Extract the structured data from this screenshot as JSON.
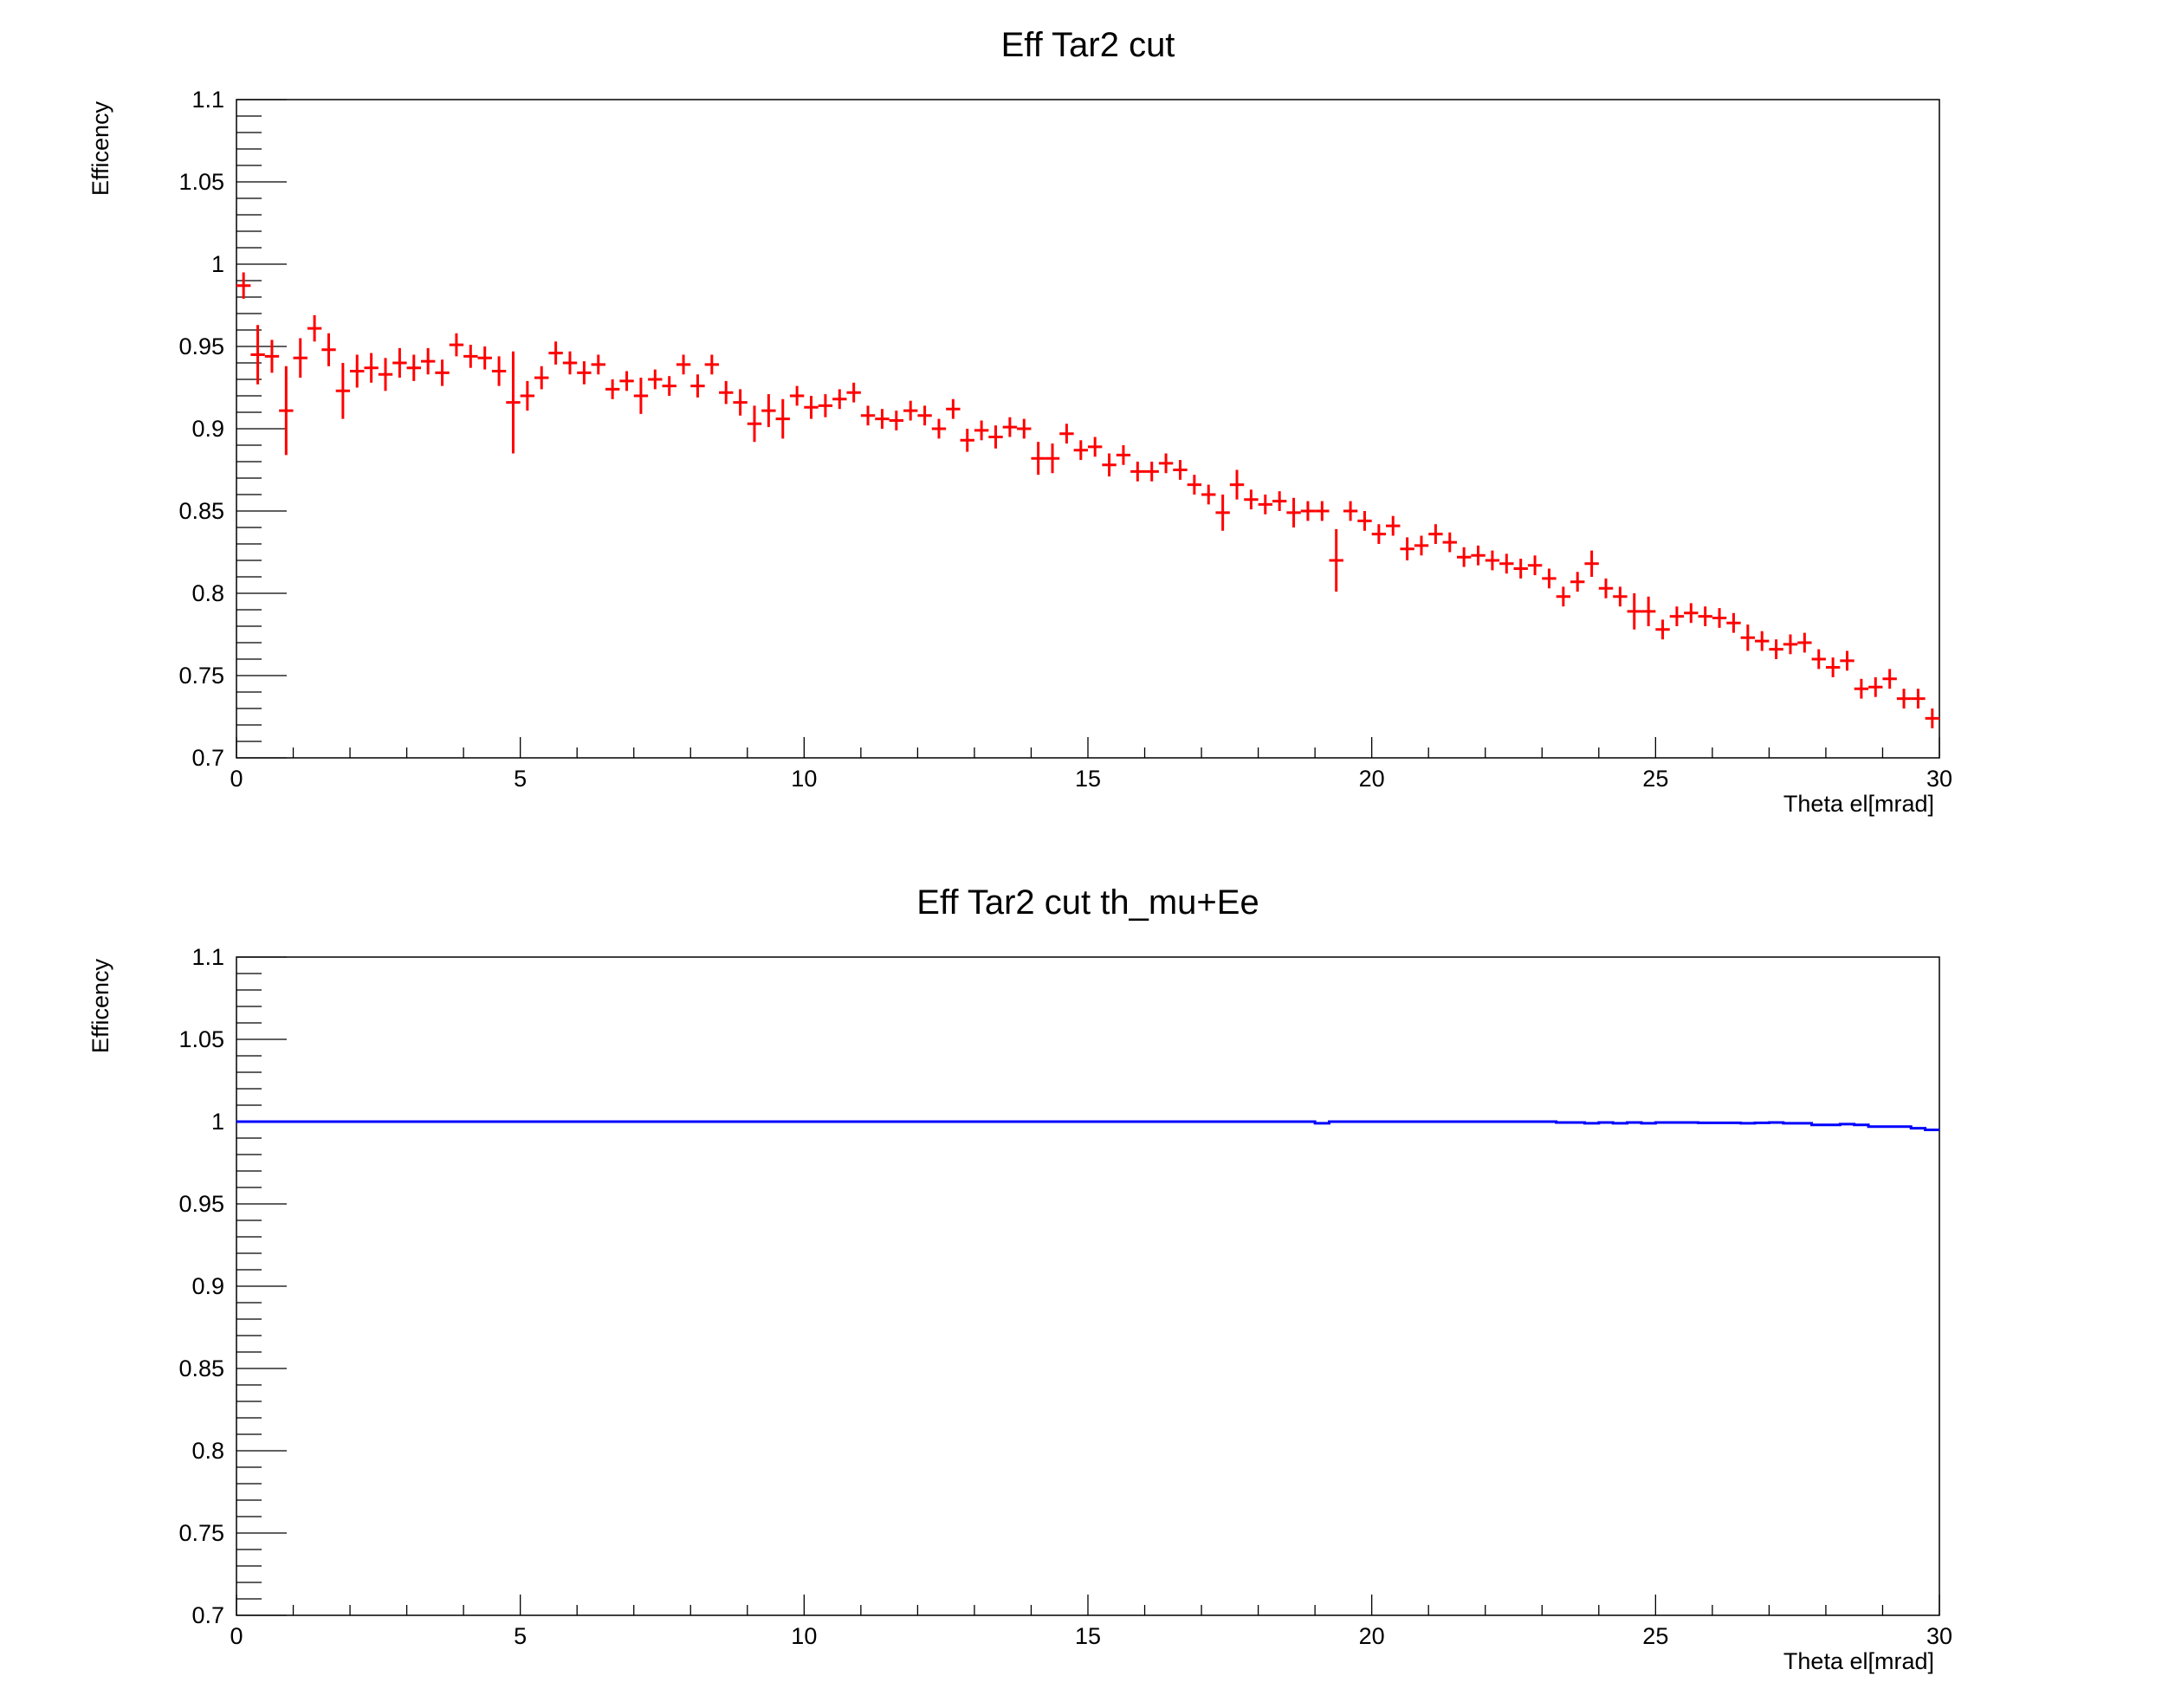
{
  "chart_data": [
    {
      "type": "scatter",
      "title": "Eff Tar2 cut",
      "xlabel": "Theta el[mrad]",
      "ylabel": "Efficency",
      "xlim": [
        0,
        30
      ],
      "ylim": [
        0.7,
        1.1
      ],
      "x_ticks": [
        "0",
        "5",
        "10",
        "15",
        "20",
        "25",
        "30"
      ],
      "y_ticks": [
        "0.7",
        "0.75",
        "0.8",
        "0.85",
        "0.9",
        "0.95",
        "1",
        "1.05",
        "1.1"
      ],
      "bin_width": 0.25,
      "color": "#ff0000",
      "style": "points-with-error-bars",
      "series": [
        {
          "x": [
            0.125,
            0.375,
            0.625,
            0.875,
            1.125,
            1.375,
            1.625,
            1.875,
            2.125,
            2.375,
            2.625,
            2.875,
            3.125,
            3.375,
            3.625,
            3.875,
            4.125,
            4.375,
            4.625,
            4.875,
            5.125,
            5.375,
            5.625,
            5.875,
            6.125,
            6.375,
            6.625,
            6.875,
            7.125,
            7.375,
            7.625,
            7.875,
            8.125,
            8.375,
            8.625,
            8.875,
            9.125,
            9.375,
            9.625,
            9.875,
            10.125,
            10.375,
            10.625,
            10.875,
            11.125,
            11.375,
            11.625,
            11.875,
            12.125,
            12.375,
            12.625,
            12.875,
            13.125,
            13.375,
            13.625,
            13.875,
            14.125,
            14.375,
            14.625,
            14.875,
            15.125,
            15.375,
            15.625,
            15.875,
            16.125,
            16.375,
            16.625,
            16.875,
            17.125,
            17.375,
            17.625,
            17.875,
            18.125,
            18.375,
            18.625,
            18.875,
            19.125,
            19.375,
            19.625,
            19.875,
            20.125,
            20.375,
            20.625,
            20.875,
            21.125,
            21.375,
            21.625,
            21.875,
            22.125,
            22.375,
            22.625,
            22.875,
            23.125,
            23.375,
            23.625,
            23.875,
            24.125,
            24.375,
            24.625,
            24.875,
            25.125,
            25.375,
            25.625,
            25.875,
            26.125,
            26.375,
            26.625,
            26.875,
            27.125,
            27.375,
            27.625,
            27.875,
            28.125,
            28.375,
            28.625,
            28.875,
            29.125,
            29.375,
            29.625,
            29.875
          ],
          "y": [
            0.987,
            0.945,
            0.944,
            0.911,
            0.943,
            0.961,
            0.948,
            0.923,
            0.935,
            0.937,
            0.933,
            0.94,
            0.937,
            0.941,
            0.934,
            0.951,
            0.944,
            0.943,
            0.935,
            0.916,
            0.92,
            0.931,
            0.946,
            0.94,
            0.934,
            0.939,
            0.924,
            0.929,
            0.92,
            0.93,
            0.926,
            0.939,
            0.926,
            0.939,
            0.922,
            0.916,
            0.903,
            0.911,
            0.906,
            0.92,
            0.913,
            0.914,
            0.918,
            0.922,
            0.908,
            0.906,
            0.905,
            0.911,
            0.908,
            0.9,
            0.912,
            0.893,
            0.899,
            0.895,
            0.901,
            0.9,
            0.882,
            0.882,
            0.897,
            0.887,
            0.889,
            0.878,
            0.884,
            0.874,
            0.874,
            0.879,
            0.875,
            0.866,
            0.86,
            0.849,
            0.866,
            0.857,
            0.854,
            0.856,
            0.849,
            0.85,
            0.85,
            0.82,
            0.85,
            0.844,
            0.836,
            0.841,
            0.827,
            0.829,
            0.836,
            0.831,
            0.822,
            0.823,
            0.82,
            0.818,
            0.815,
            0.817,
            0.809,
            0.798,
            0.807,
            0.818,
            0.803,
            0.798,
            0.789,
            0.789,
            0.778,
            0.786,
            0.788,
            0.786,
            0.785,
            0.782,
            0.773,
            0.771,
            0.766,
            0.769,
            0.77,
            0.76,
            0.755,
            0.759,
            0.742,
            0.743,
            0.748,
            0.736,
            0.736,
            0.724
          ],
          "y_err": [
            0.008,
            0.018,
            0.01,
            0.027,
            0.012,
            0.008,
            0.01,
            0.017,
            0.01,
            0.009,
            0.01,
            0.009,
            0.008,
            0.008,
            0.008,
            0.007,
            0.007,
            0.007,
            0.009,
            0.031,
            0.009,
            0.007,
            0.007,
            0.007,
            0.007,
            0.006,
            0.006,
            0.006,
            0.011,
            0.006,
            0.006,
            0.006,
            0.007,
            0.006,
            0.007,
            0.008,
            0.011,
            0.01,
            0.012,
            0.006,
            0.007,
            0.007,
            0.006,
            0.006,
            0.006,
            0.006,
            0.006,
            0.006,
            0.006,
            0.006,
            0.006,
            0.007,
            0.006,
            0.007,
            0.006,
            0.006,
            0.01,
            0.009,
            0.006,
            0.006,
            0.006,
            0.007,
            0.006,
            0.006,
            0.006,
            0.006,
            0.006,
            0.006,
            0.006,
            0.011,
            0.009,
            0.006,
            0.006,
            0.006,
            0.009,
            0.006,
            0.006,
            0.019,
            0.006,
            0.006,
            0.006,
            0.006,
            0.007,
            0.006,
            0.006,
            0.006,
            0.006,
            0.006,
            0.006,
            0.006,
            0.006,
            0.006,
            0.006,
            0.006,
            0.006,
            0.008,
            0.006,
            0.006,
            0.011,
            0.009,
            0.006,
            0.006,
            0.006,
            0.006,
            0.006,
            0.006,
            0.008,
            0.006,
            0.006,
            0.006,
            0.006,
            0.006,
            0.006,
            0.006,
            0.006,
            0.006,
            0.006,
            0.006,
            0.006,
            0.006
          ]
        }
      ]
    },
    {
      "type": "line",
      "title": "Eff Tar2 cut th_mu+Ee",
      "xlabel": "Theta el[mrad]",
      "ylabel": "Efficency",
      "xlim": [
        0,
        30
      ],
      "ylim": [
        0.7,
        1.1
      ],
      "x_ticks": [
        "0",
        "5",
        "10",
        "15",
        "20",
        "25",
        "30"
      ],
      "y_ticks": [
        "0.7",
        "0.75",
        "0.8",
        "0.85",
        "0.9",
        "0.95",
        "1",
        "1.05",
        "1.1"
      ],
      "bin_width": 0.25,
      "color": "#0000ff",
      "style": "histogram-steps",
      "series": [
        {
          "x": [
            0.125,
            0.375,
            0.625,
            0.875,
            1.125,
            1.375,
            1.625,
            1.875,
            2.125,
            2.375,
            2.625,
            2.875,
            3.125,
            3.375,
            3.625,
            3.875,
            4.125,
            4.375,
            4.625,
            4.875,
            5.125,
            5.375,
            5.625,
            5.875,
            6.125,
            6.375,
            6.625,
            6.875,
            7.125,
            7.375,
            7.625,
            7.875,
            8.125,
            8.375,
            8.625,
            8.875,
            9.125,
            9.375,
            9.625,
            9.875,
            10.125,
            10.375,
            10.625,
            10.875,
            11.125,
            11.375,
            11.625,
            11.875,
            12.125,
            12.375,
            12.625,
            12.875,
            13.125,
            13.375,
            13.625,
            13.875,
            14.125,
            14.375,
            14.625,
            14.875,
            15.125,
            15.375,
            15.625,
            15.875,
            16.125,
            16.375,
            16.625,
            16.875,
            17.125,
            17.375,
            17.625,
            17.875,
            18.125,
            18.375,
            18.625,
            18.875,
            19.125,
            19.375,
            19.625,
            19.875,
            20.125,
            20.375,
            20.625,
            20.875,
            21.125,
            21.375,
            21.625,
            21.875,
            22.125,
            22.375,
            22.625,
            22.875,
            23.125,
            23.375,
            23.625,
            23.875,
            24.125,
            24.375,
            24.625,
            24.875,
            25.125,
            25.375,
            25.625,
            25.875,
            26.125,
            26.375,
            26.625,
            26.875,
            27.125,
            27.375,
            27.625,
            27.875,
            28.125,
            28.375,
            28.625,
            28.875,
            29.125,
            29.375,
            29.625,
            29.875
          ],
          "y": [
            1,
            1,
            1,
            1,
            1,
            1,
            1,
            1,
            1,
            1,
            1,
            1,
            1,
            1,
            1,
            1,
            1,
            1,
            1,
            1,
            1,
            1,
            1,
            1,
            1,
            1,
            1,
            1,
            1,
            1,
            1,
            1,
            1,
            1,
            1,
            1,
            1,
            1,
            1,
            1,
            1,
            1,
            1,
            1,
            1,
            1,
            1,
            1,
            1,
            1,
            1,
            1,
            1,
            1,
            1,
            1,
            1,
            1,
            1,
            1,
            1,
            1,
            1,
            1,
            1,
            1,
            1,
            1,
            1,
            1,
            1,
            1,
            1,
            1,
            1,
            1,
            0.999,
            1,
            1,
            1,
            1,
            1,
            1,
            1,
            1,
            1,
            1,
            1,
            1,
            1,
            1,
            1,
            1,
            0.9995,
            0.9995,
            0.999,
            0.9995,
            0.999,
            0.9995,
            0.999,
            0.9995,
            0.9995,
            0.9995,
            0.9993,
            0.9993,
            0.9993,
            0.999,
            0.9993,
            0.9995,
            0.999,
            0.999,
            0.998,
            0.998,
            0.9985,
            0.998,
            0.997,
            0.997,
            0.997,
            0.996,
            0.995
          ]
        }
      ]
    }
  ]
}
